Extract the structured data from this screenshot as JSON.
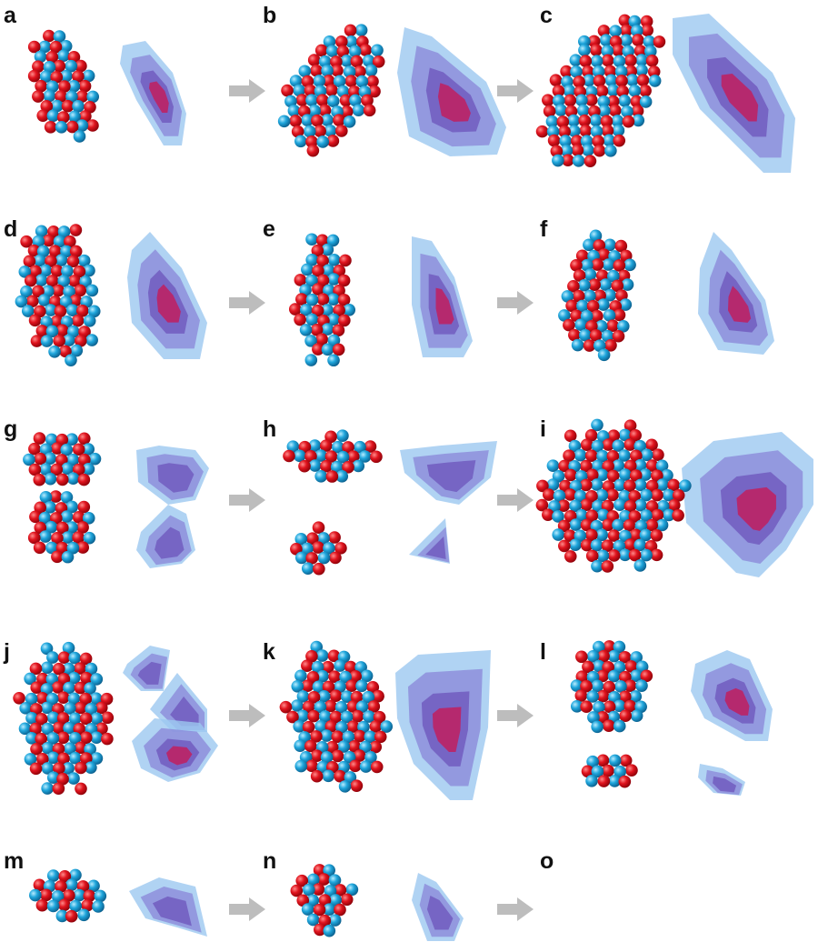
{
  "panels": [
    {
      "label": "a"
    },
    {
      "label": "b"
    },
    {
      "label": "c"
    },
    {
      "label": "d"
    },
    {
      "label": "e"
    },
    {
      "label": "f"
    },
    {
      "label": "g"
    },
    {
      "label": "h"
    },
    {
      "label": "i"
    },
    {
      "label": "j"
    },
    {
      "label": "k"
    },
    {
      "label": "l"
    },
    {
      "label": "m"
    },
    {
      "label": "n"
    },
    {
      "label": "o"
    }
  ]
}
